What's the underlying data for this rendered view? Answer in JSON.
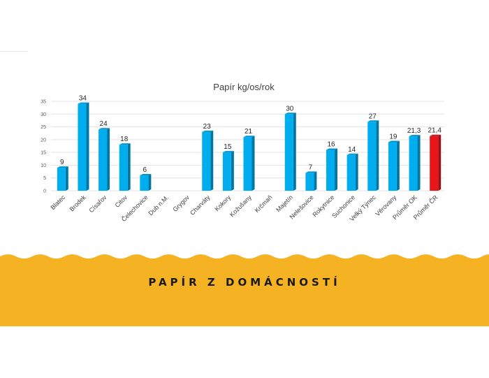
{
  "banner": {
    "title": "PAPÍR Z DOMÁCNOSTÍ",
    "color": "#f5b323"
  },
  "chart_data": {
    "type": "bar",
    "title": "Papír kg/os/rok",
    "xlabel": "",
    "ylabel": "",
    "ylim": [
      0,
      35
    ],
    "yticks": [
      0,
      5,
      10,
      15,
      20,
      25,
      30,
      35
    ],
    "grid": true,
    "legend": "none",
    "categories": [
      "Blatec",
      "Brodek",
      "Císařov",
      "Citov",
      "Čelechovice",
      "Dub n.M.",
      "Grygov",
      "Charváty",
      "Kokory",
      "Kožušany",
      "Krčmaň",
      "Majetín",
      "Nelešovice",
      "Rokytnice",
      "Suchonice",
      "Velký Týnec",
      "Věrovany",
      "Průměr OK",
      "Průměr ČR"
    ],
    "values": [
      9,
      34,
      24,
      18,
      6,
      null,
      null,
      23,
      15,
      21,
      null,
      30,
      7,
      16,
      14,
      27,
      19,
      21.3,
      21.4
    ],
    "data_labels": [
      "9",
      "34",
      "24",
      "18",
      "6",
      "",
      "",
      "23",
      "15",
      "21",
      "",
      "30",
      "7",
      "16",
      "14",
      "27",
      "19",
      "21,3",
      "21,4"
    ],
    "colors": {
      "default": "#00aeef",
      "highlight": "#e8161b",
      "highlight_index": 18
    }
  }
}
